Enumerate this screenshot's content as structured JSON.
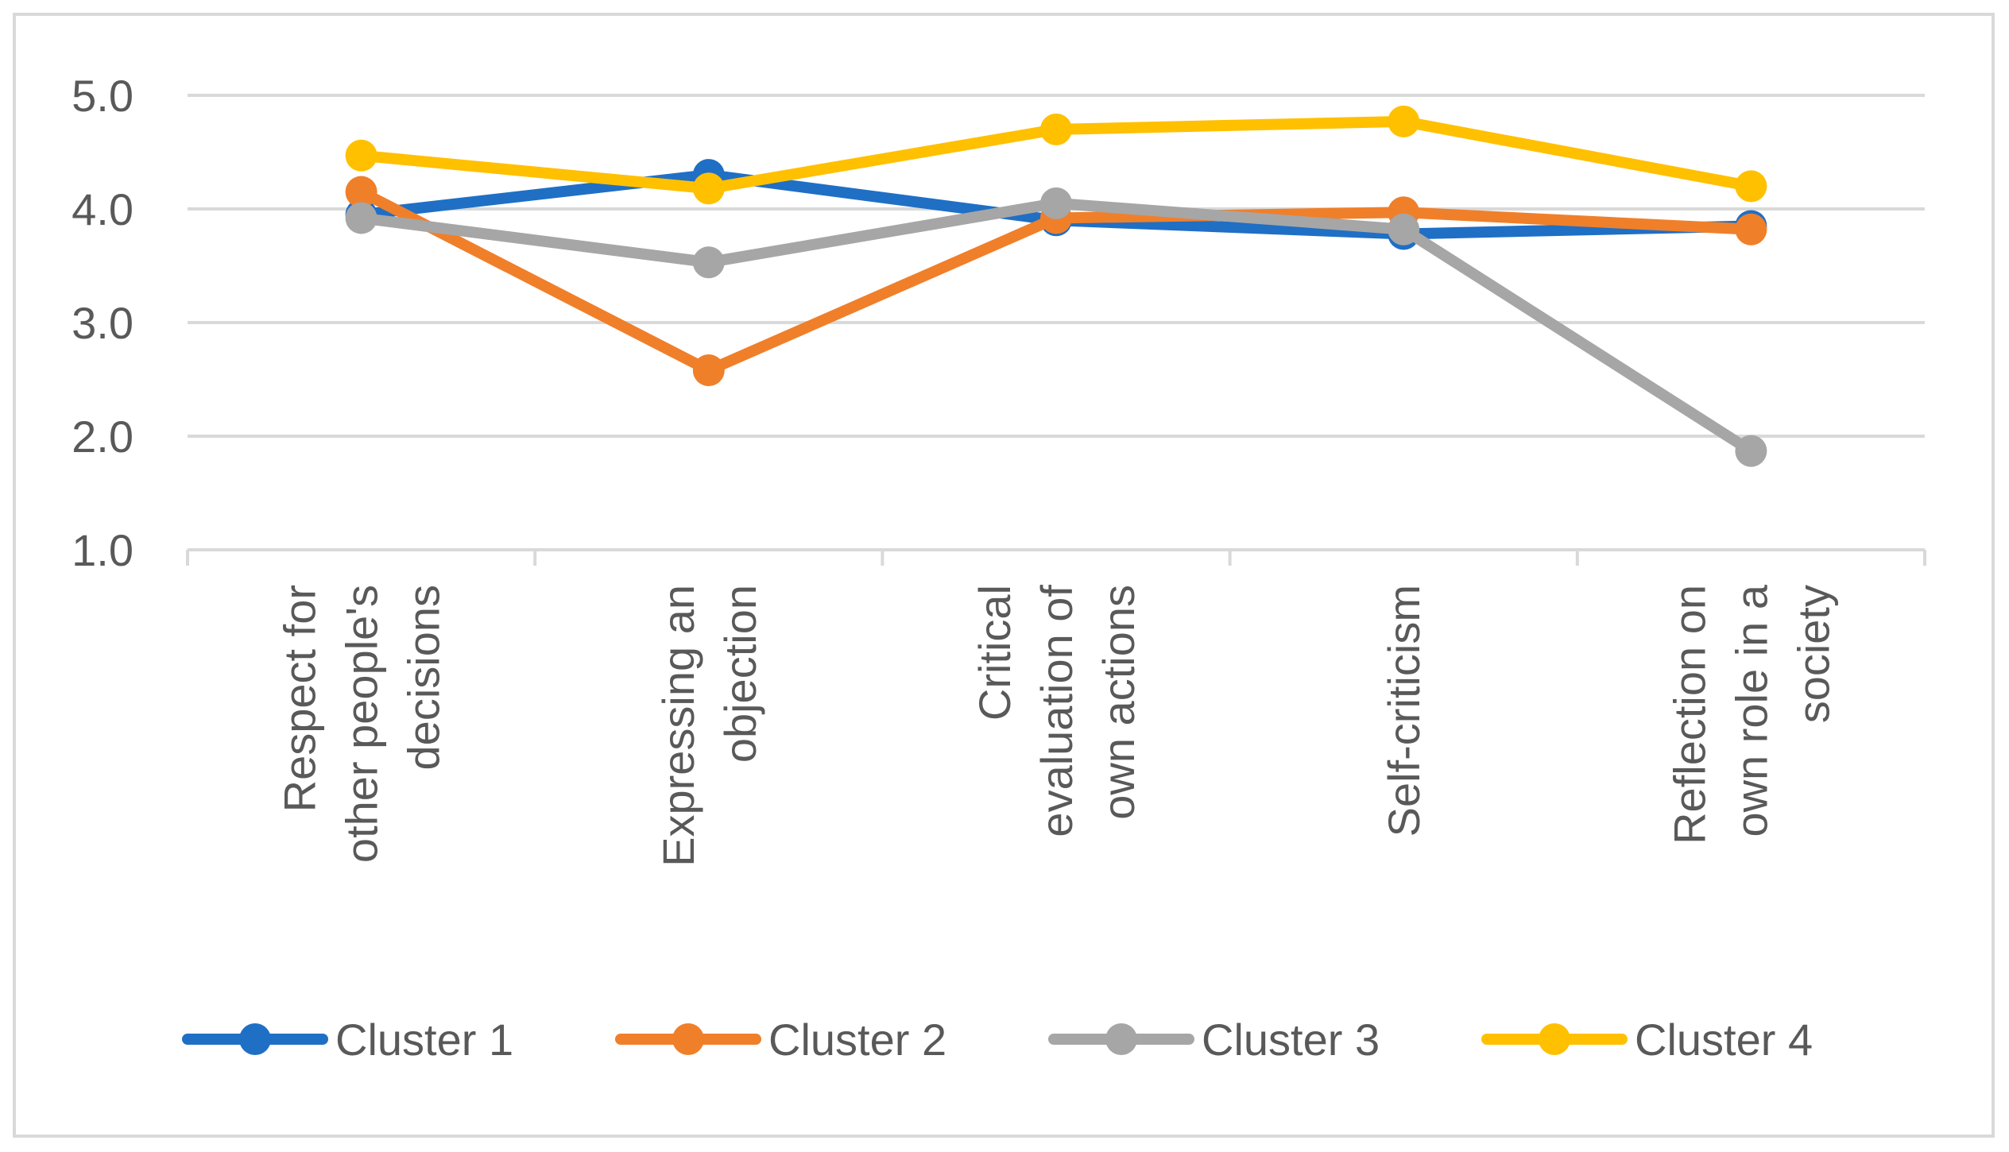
{
  "chart_data": {
    "type": "line",
    "title": "",
    "xlabel": "",
    "ylabel": "",
    "ylim": [
      1.0,
      5.0
    ],
    "yticks": [
      "1.0",
      "2.0",
      "3.0",
      "4.0",
      "5.0"
    ],
    "grid": true,
    "legend_position": "bottom",
    "categories": [
      [
        "Respect for",
        "other people's",
        "decisions"
      ],
      [
        "Expressing an",
        "objection"
      ],
      [
        "Critical",
        "evaluation of",
        "own actions"
      ],
      [
        "Self-criticism"
      ],
      [
        "Reflection on",
        "own role in a",
        "society"
      ]
    ],
    "series": [
      {
        "name": "Cluster 1",
        "color": "#1f6fc5",
        "values": [
          3.95,
          4.3,
          3.9,
          3.78,
          3.85
        ]
      },
      {
        "name": "Cluster 2",
        "color": "#f07f2a",
        "values": [
          4.15,
          2.58,
          3.92,
          3.97,
          3.82
        ]
      },
      {
        "name": "Cluster 3",
        "color": "#a6a6a6",
        "values": [
          3.92,
          3.53,
          4.05,
          3.82,
          1.87
        ]
      },
      {
        "name": "Cluster 4",
        "color": "#ffc000",
        "values": [
          4.47,
          4.18,
          4.7,
          4.77,
          4.2
        ]
      }
    ]
  }
}
